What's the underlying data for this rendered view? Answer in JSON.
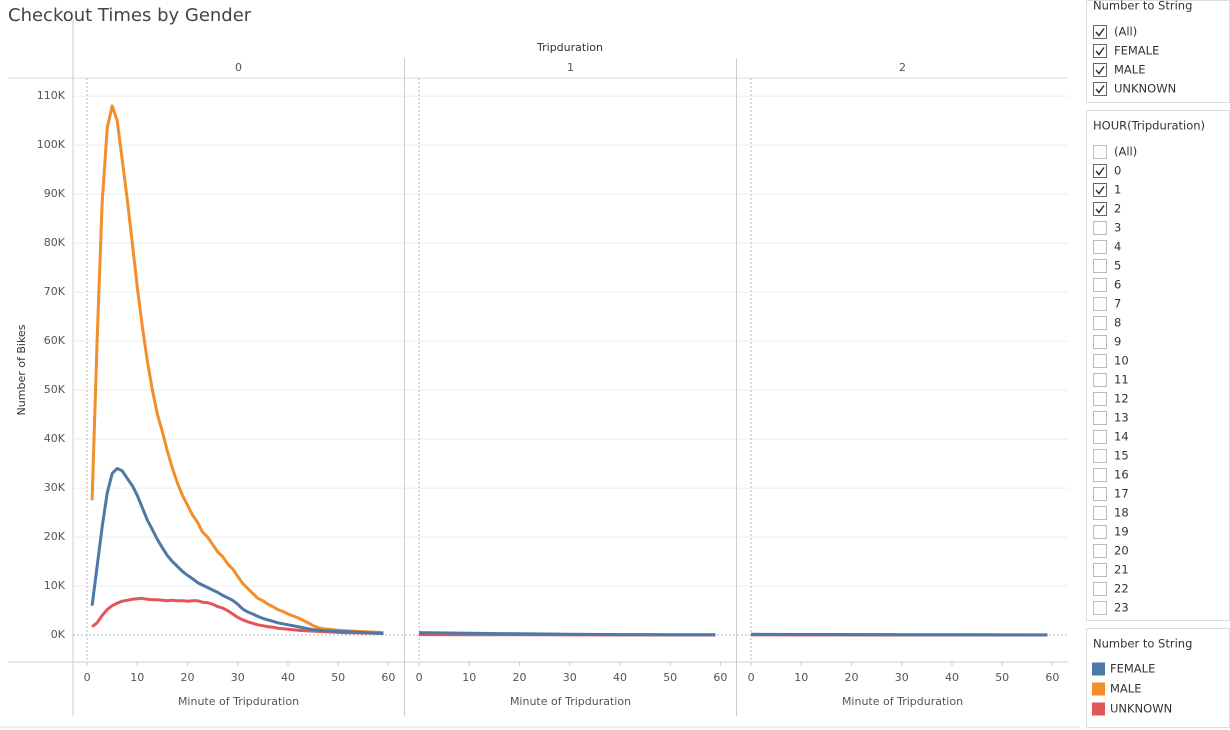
{
  "chart_data": {
    "type": "line",
    "title": "Checkout Times by Gender",
    "column_header": "Tripduration",
    "xlabel": "Minute of Tripduration",
    "ylabel": "Number of Bikes",
    "xlim": [
      -2.8,
      63.1
    ],
    "xticks": [
      0,
      10,
      20,
      30,
      40,
      50,
      60
    ],
    "ylim": [
      -5500,
      113700
    ],
    "yticks": [
      {
        "value": 0,
        "label": "0K"
      },
      {
        "value": 10000,
        "label": "10K"
      },
      {
        "value": 20000,
        "label": "20K"
      },
      {
        "value": 30000,
        "label": "30K"
      },
      {
        "value": 40000,
        "label": "40K"
      },
      {
        "value": 50000,
        "label": "50K"
      },
      {
        "value": 60000,
        "label": "60K"
      },
      {
        "value": 70000,
        "label": "70K"
      },
      {
        "value": 80000,
        "label": "80K"
      },
      {
        "value": 90000,
        "label": "90K"
      },
      {
        "value": 100000,
        "label": "100K"
      },
      {
        "value": 110000,
        "label": "110K"
      }
    ],
    "grid": true,
    "legend_title": "Number to String",
    "series": [
      {
        "name": "FEMALE",
        "color": "#4e79a7"
      },
      {
        "name": "MALE",
        "color": "#f28e2b"
      },
      {
        "name": "UNKNOWN",
        "color": "#e15759"
      }
    ],
    "panels": [
      {
        "label": "0",
        "x": [
          1,
          2,
          3,
          4,
          5,
          6,
          7,
          8,
          9,
          10,
          11,
          12,
          13,
          14,
          15,
          16,
          17,
          18,
          19,
          20,
          21,
          22,
          23,
          24,
          25,
          26,
          27,
          28,
          29,
          30,
          31,
          32,
          33,
          34,
          35,
          36,
          37,
          38,
          39,
          40,
          41,
          42,
          43,
          44,
          45,
          46,
          47,
          48,
          49,
          50,
          51,
          52,
          53,
          54,
          55,
          56,
          57,
          58,
          59
        ],
        "values": [
          [
            6000,
            14000,
            22000,
            29000,
            33000,
            34000,
            33500,
            32000,
            30500,
            28500,
            26000,
            23500,
            21500,
            19500,
            17800,
            16200,
            15000,
            14000,
            13000,
            12200,
            11500,
            10700,
            10200,
            9700,
            9200,
            8700,
            8100,
            7600,
            7100,
            6300,
            5300,
            4700,
            4300,
            3800,
            3400,
            3100,
            2800,
            2500,
            2300,
            2100,
            1900,
            1700,
            1500,
            1300,
            1100,
            1000,
            900,
            850,
            800,
            750,
            700,
            650,
            600,
            550,
            500,
            450,
            400,
            350,
            300
          ],
          [
            27500,
            60000,
            88000,
            103500,
            108000,
            105000,
            97000,
            89000,
            80000,
            71000,
            63000,
            56000,
            50000,
            45000,
            41500,
            37500,
            34000,
            31000,
            28500,
            26500,
            24500,
            23000,
            21000,
            20000,
            18500,
            17000,
            16000,
            14500,
            13500,
            12000,
            10500,
            9500,
            8500,
            7500,
            7000,
            6300,
            5800,
            5200,
            4800,
            4300,
            3900,
            3500,
            3000,
            2500,
            1900,
            1500,
            1300,
            1200,
            1100,
            1000,
            900,
            850,
            800,
            750,
            700,
            650,
            600,
            550,
            500
          ],
          [
            1700,
            2500,
            4000,
            5200,
            6000,
            6500,
            6900,
            7100,
            7300,
            7400,
            7500,
            7300,
            7200,
            7200,
            7100,
            7000,
            7100,
            7000,
            7000,
            6900,
            7000,
            7000,
            6700,
            6600,
            6300,
            5800,
            5500,
            5000,
            4300,
            3600,
            3100,
            2700,
            2400,
            2100,
            1900,
            1700,
            1600,
            1400,
            1300,
            1200,
            1100,
            1000,
            900,
            850,
            800,
            750,
            700,
            650,
            600,
            550,
            500,
            480,
            460,
            440,
            420,
            400,
            380,
            360,
            340
          ]
        ]
      },
      {
        "label": "1",
        "x": [
          0,
          10,
          20,
          30,
          40,
          50,
          59
        ],
        "values": [
          [
            500,
            350,
            250,
            150,
            100,
            80,
            60
          ],
          [
            400,
            300,
            200,
            120,
            80,
            60,
            50
          ],
          [
            100,
            80,
            60,
            40,
            30,
            20,
            15
          ]
        ]
      },
      {
        "label": "2",
        "x": [
          0,
          10,
          20,
          30,
          40,
          50,
          59
        ],
        "values": [
          [
            150,
            120,
            100,
            80,
            60,
            40,
            30
          ],
          [
            120,
            100,
            80,
            60,
            50,
            30,
            20
          ],
          [
            40,
            30,
            25,
            20,
            15,
            10,
            5
          ]
        ]
      }
    ]
  },
  "filters": [
    {
      "title": "Number to String",
      "items": [
        {
          "label": "(All)",
          "checked": true
        },
        {
          "label": "FEMALE",
          "checked": true
        },
        {
          "label": "MALE",
          "checked": true
        },
        {
          "label": "UNKNOWN",
          "checked": true
        }
      ]
    },
    {
      "title": "HOUR(Tripduration)",
      "items": [
        {
          "label": "(All)",
          "checked": false
        },
        {
          "label": "0",
          "checked": true
        },
        {
          "label": "1",
          "checked": true
        },
        {
          "label": "2",
          "checked": true
        },
        {
          "label": "3",
          "checked": false
        },
        {
          "label": "4",
          "checked": false
        },
        {
          "label": "5",
          "checked": false
        },
        {
          "label": "6",
          "checked": false
        },
        {
          "label": "7",
          "checked": false
        },
        {
          "label": "8",
          "checked": false
        },
        {
          "label": "9",
          "checked": false
        },
        {
          "label": "10",
          "checked": false
        },
        {
          "label": "11",
          "checked": false
        },
        {
          "label": "12",
          "checked": false
        },
        {
          "label": "13",
          "checked": false
        },
        {
          "label": "14",
          "checked": false
        },
        {
          "label": "15",
          "checked": false
        },
        {
          "label": "16",
          "checked": false
        },
        {
          "label": "17",
          "checked": false
        },
        {
          "label": "18",
          "checked": false
        },
        {
          "label": "19",
          "checked": false
        },
        {
          "label": "20",
          "checked": false
        },
        {
          "label": "21",
          "checked": false
        },
        {
          "label": "22",
          "checked": false
        },
        {
          "label": "23",
          "checked": false
        }
      ]
    }
  ]
}
